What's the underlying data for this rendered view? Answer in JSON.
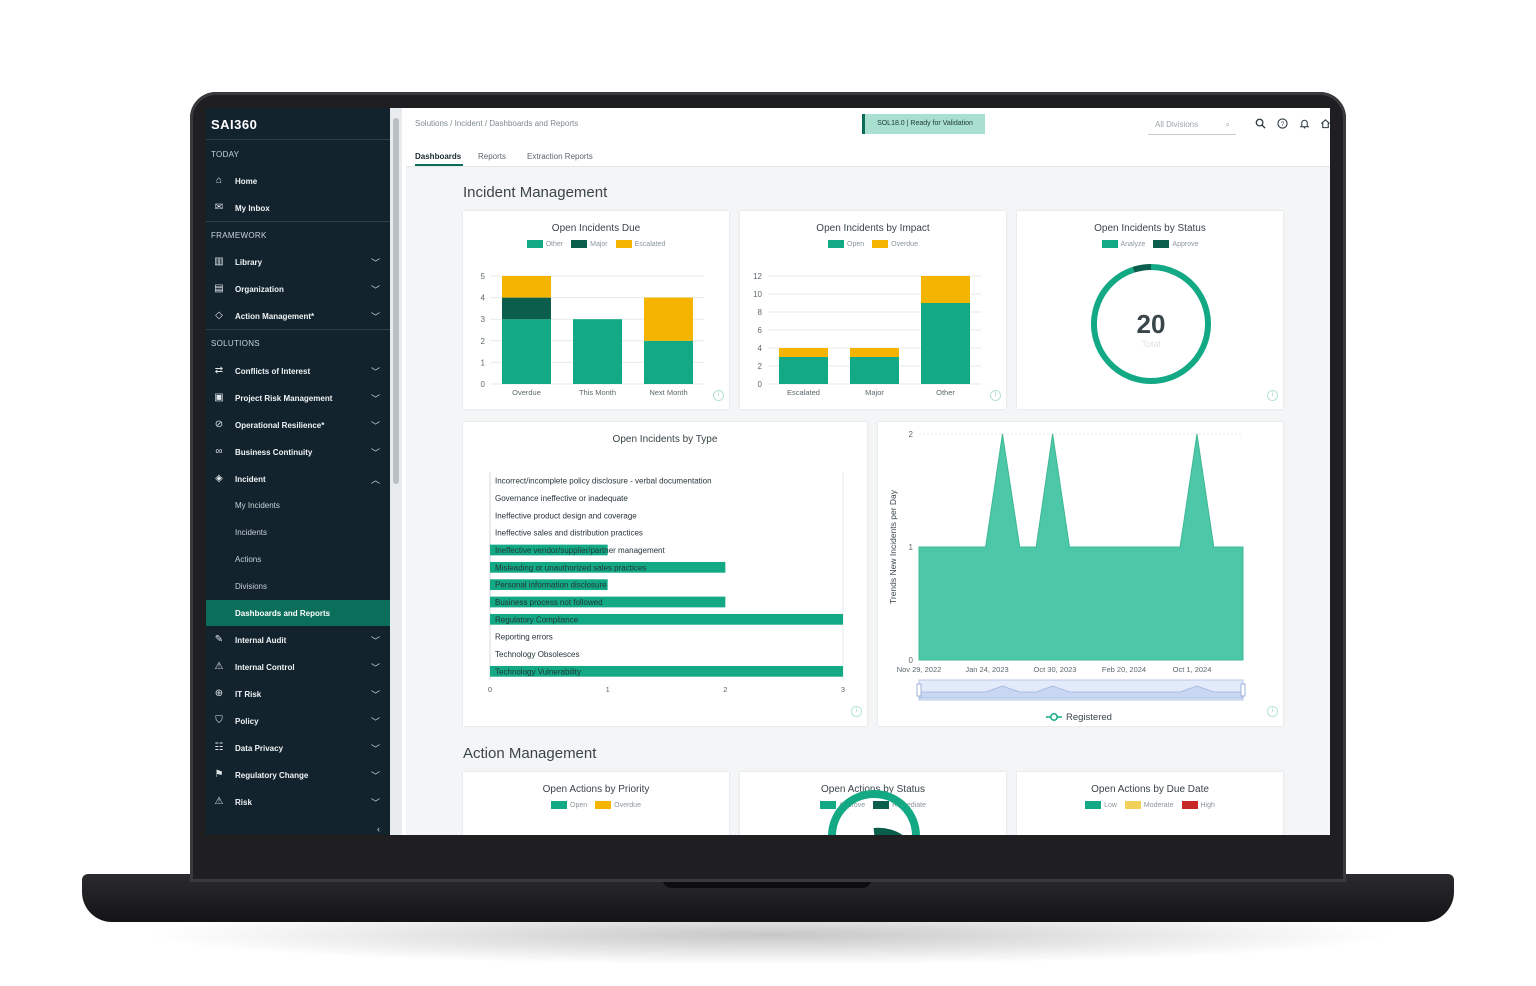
{
  "app": {
    "logo": "SAI360",
    "breadcrumb": "Solutions / Incident / Dashboards and Reports",
    "status_badge": "SOL18.0 | Ready for Validation",
    "division_placeholder": "All Divisions"
  },
  "sidebar": {
    "today_header": "TODAY",
    "framework_header": "FRAMEWORK",
    "solutions_header": "SOLUTIONS",
    "today": [
      {
        "label": "Home",
        "icon": "home-icon"
      },
      {
        "label": "My Inbox",
        "icon": "inbox-icon"
      }
    ],
    "framework": [
      {
        "label": "Library",
        "icon": "library-icon"
      },
      {
        "label": "Organization",
        "icon": "organization-icon"
      },
      {
        "label": "Action Management*",
        "icon": "diamond-icon"
      }
    ],
    "solutions": [
      {
        "label": "Conflicts of Interest",
        "icon": "signpost-icon"
      },
      {
        "label": "Project Risk Management",
        "icon": "clipboard-icon"
      },
      {
        "label": "Operational Resilience*",
        "icon": "gauge-icon"
      },
      {
        "label": "Business Continuity",
        "icon": "infinity-icon"
      },
      {
        "label": "Incident",
        "icon": "incident-diamond-icon"
      }
    ],
    "incident_sub": [
      "My Incidents",
      "Incidents",
      "Actions",
      "Divisions",
      "Dashboards and Reports"
    ],
    "more": [
      {
        "label": "Internal Audit",
        "icon": "pen-icon"
      },
      {
        "label": "Internal Control",
        "icon": "warning-icon"
      },
      {
        "label": "IT Risk",
        "icon": "globe-icon"
      },
      {
        "label": "Policy",
        "icon": "policy-icon"
      },
      {
        "label": "Data Privacy",
        "icon": "data-privacy-icon"
      },
      {
        "label": "Regulatory Change",
        "icon": "megaphone-icon"
      },
      {
        "label": "Risk",
        "icon": "risk-warning-icon"
      }
    ]
  },
  "tabs": [
    "Dashboards",
    "Reports",
    "Extraction Reports"
  ],
  "sections": {
    "incident_management": "Incident Management",
    "action_management": "Action Management"
  },
  "colors": {
    "green": "#12a984",
    "dark_green": "#0b5e4b",
    "yellow": "#f4b400",
    "area_green": "#4cc7a8",
    "light_yellow": "#f2d15a",
    "red": "#c62828"
  },
  "chart_data": [
    {
      "type": "bar",
      "title": "Open Incidents Due",
      "categories": [
        "Overdue",
        "This Month",
        "Next Month"
      ],
      "series": [
        {
          "name": "Other",
          "values": [
            3,
            3,
            2
          ]
        },
        {
          "name": "Major",
          "values": [
            1,
            0,
            0
          ]
        },
        {
          "name": "Escalated",
          "values": [
            1,
            0,
            2
          ]
        }
      ],
      "yticks": [
        "0",
        "1",
        "2",
        "3",
        "4",
        "5"
      ],
      "ylim": [
        0,
        5
      ],
      "stacked": true
    },
    {
      "type": "bar",
      "title": "Open Incidents by Impact",
      "categories": [
        "Escalated",
        "Major",
        "Other"
      ],
      "series": [
        {
          "name": "Open",
          "values": [
            3,
            3,
            9
          ]
        },
        {
          "name": "Overdue",
          "values": [
            1,
            1,
            3
          ]
        }
      ],
      "yticks": [
        "0",
        "2",
        "4",
        "6",
        "8",
        "10",
        "12"
      ],
      "ylim": [
        0,
        12
      ],
      "stacked": true
    },
    {
      "type": "pie",
      "title": "Open Incidents by Status",
      "series": [
        {
          "name": "Analyze",
          "value": 19
        },
        {
          "name": "Approve",
          "value": 1
        }
      ],
      "total_value": "20",
      "total_label": "Total"
    },
    {
      "type": "bar",
      "orientation": "horizontal",
      "title": "Open Incidents by Type",
      "categories": [
        "Incorrect/incomplete policy disclosure - verbal documentation",
        "Governance ineffective or inadequate",
        "Ineffective product design and coverage",
        "Ineffective sales and distribution practices",
        "Ineffective vendor/supplier/partner management",
        "Misleading or unauthorized sales practices",
        "Personal information disclosure",
        "Business process not followed",
        "Regulatory Compliance",
        "Reporting errors",
        "Technology Obsolesces",
        "Technology Vulnerability"
      ],
      "values": [
        0,
        0,
        0,
        0,
        1,
        2,
        1,
        2,
        3,
        0,
        0,
        3
      ],
      "xticks": [
        "0",
        "1",
        "2",
        "3"
      ],
      "xlim": [
        0,
        3
      ]
    },
    {
      "type": "area",
      "ylabel": "Trends New Incidents per Day",
      "series": [
        {
          "name": "Registered",
          "points": [
            [
              "2022-11-29",
              1
            ],
            [
              "2023-05-10",
              1
            ],
            [
              "2023-06-20",
              2
            ],
            [
              "2023-08-01",
              1
            ],
            [
              "2023-09-10",
              1
            ],
            [
              "2023-10-20",
              2
            ],
            [
              "2023-11-30",
              1
            ],
            [
              "2024-08-25",
              1
            ],
            [
              "2024-10-05",
              2
            ],
            [
              "2024-11-15",
              1
            ],
            [
              "2025-01-25",
              1
            ]
          ]
        }
      ],
      "xticks": [
        "Nov 29, 2022",
        "Jan 24, 2023",
        "Oct 30, 2023",
        "Feb 20, 2024",
        "Oct 1, 2024"
      ],
      "yticks": [
        "0",
        "1",
        "2"
      ],
      "ylim": [
        0,
        2
      ]
    },
    {
      "type": "bar",
      "title": "Open Actions by Priority",
      "series": [
        {
          "name": "Open"
        },
        {
          "name": "Overdue"
        }
      ]
    },
    {
      "type": "pie",
      "title": "Open Actions by Status",
      "series": [
        {
          "name": "Approve"
        },
        {
          "name": "Remediate"
        }
      ]
    },
    {
      "type": "bar",
      "title": "Open Actions by Due Date",
      "series": [
        {
          "name": "Low"
        },
        {
          "name": "Moderate"
        },
        {
          "name": "High"
        }
      ]
    }
  ]
}
